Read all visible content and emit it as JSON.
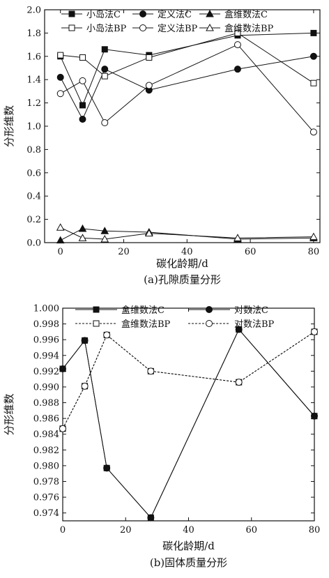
{
  "chart_data": [
    {
      "type": "line",
      "caption": "(a)孔隙质量分形",
      "xlabel": "碳化龄期/d",
      "ylabel": "分形维数",
      "xlim": [
        -5,
        82
      ],
      "ylim": [
        0.0,
        2.0
      ],
      "xticks": [
        0,
        20,
        40,
        60,
        80
      ],
      "xtick_labels": [
        "0",
        "20",
        "40",
        "60",
        "80"
      ],
      "yticks": [
        0.0,
        0.2,
        0.4,
        0.6,
        0.8,
        1.0,
        1.2,
        1.4,
        1.6,
        1.8,
        2.0
      ],
      "ytick_labels": [
        "0.0",
        "0.2",
        "0.4",
        "0.6",
        "0.8",
        "1.0",
        "1.2",
        "1.4",
        "1.6",
        "1.8",
        "2.0"
      ],
      "x": [
        0,
        7,
        14,
        28,
        56,
        80
      ],
      "legend_position": "top",
      "series": [
        {
          "name": "小岛法C",
          "marker": "square-filled",
          "values": [
            1.6,
            1.18,
            1.66,
            1.61,
            1.78,
            1.8
          ]
        },
        {
          "name": "定义法C",
          "marker": "circle-filled",
          "values": [
            1.42,
            1.06,
            1.49,
            1.31,
            1.49,
            1.6
          ]
        },
        {
          "name": "盒维数法C",
          "marker": "triangle-filled",
          "values": [
            0.02,
            0.12,
            0.1,
            0.09,
            0.03,
            0.04
          ]
        },
        {
          "name": "小岛法BP",
          "marker": "square-open",
          "values": [
            1.61,
            1.59,
            1.43,
            1.59,
            1.8,
            1.37
          ]
        },
        {
          "name": "定义法BP",
          "marker": "circle-open",
          "values": [
            1.28,
            1.39,
            1.03,
            1.35,
            1.7,
            0.95
          ]
        },
        {
          "name": "盒维数法BP",
          "marker": "triangle-open",
          "values": [
            0.13,
            0.04,
            0.03,
            0.08,
            0.04,
            0.05
          ]
        }
      ]
    },
    {
      "type": "line",
      "caption": "(b)固体质量分形",
      "xlabel": "碳化龄期/d",
      "ylabel": "分形维数",
      "xlim": [
        0,
        80
      ],
      "ylim": [
        0.973,
        1.0
      ],
      "xticks": [
        0,
        20,
        40,
        60,
        80
      ],
      "xtick_labels": [
        "0",
        "20",
        "40",
        "60",
        "80"
      ],
      "yticks": [
        0.974,
        0.976,
        0.978,
        0.98,
        0.982,
        0.984,
        0.986,
        0.988,
        0.99,
        0.992,
        0.994,
        0.996,
        0.998,
        1.0
      ],
      "ytick_labels": [
        "0.974",
        "0.976",
        "0.978",
        "0.980",
        "0.982",
        "0.984",
        "0.986",
        "0.988",
        "0.990",
        "0.992",
        "0.994",
        "0.996",
        "0.998",
        "1.000"
      ],
      "x": [
        0,
        7,
        14,
        28,
        56,
        80
      ],
      "legend_position": "top",
      "series": [
        {
          "name": "盒维数法C",
          "marker": "square-filled",
          "values": [
            0.9923,
            0.9959,
            0.9797,
            0.9734,
            0.9973,
            0.9863
          ]
        },
        {
          "name": "对数法C",
          "marker": "circle-filled",
          "values": [
            0.9923,
            0.9959,
            0.9797,
            0.9734,
            0.9973,
            0.9863
          ]
        },
        {
          "name": "盒维数法BP",
          "marker": "square-open",
          "values": [
            0.9847,
            0.9901,
            0.9966,
            0.992,
            0.9906,
            0.997
          ]
        },
        {
          "name": "对数法BP",
          "marker": "circle-open",
          "values": [
            0.9847,
            0.9901,
            0.9966,
            0.992,
            0.9906,
            0.997
          ]
        }
      ]
    }
  ]
}
